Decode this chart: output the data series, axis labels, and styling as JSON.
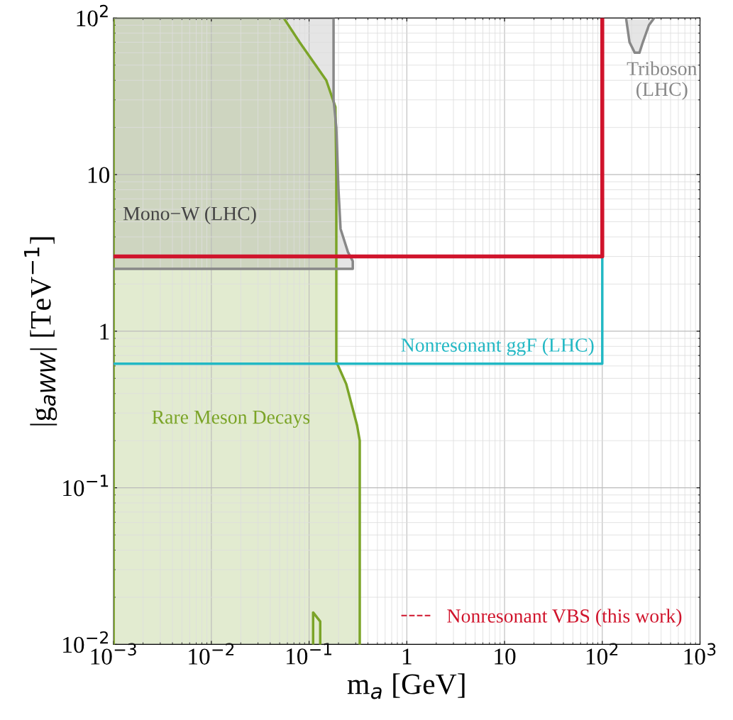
{
  "chart_data": {
    "type": "line",
    "xlabel": "m$_{a}$ [GeV]",
    "ylabel": "|g$_{aWW}$| [TeV$^{−1}$]",
    "log": "xy",
    "grid": true,
    "legend": "bottom right",
    "xlim": [
      0.001,
      1000
    ],
    "ylim": [
      0.01,
      100
    ],
    "xticks": [
      {
        "value": 0.001,
        "label": "10$^{−3}$"
      },
      {
        "value": 0.01,
        "label": "10$^{−2}$"
      },
      {
        "value": 0.1,
        "label": "10$^{−1}$"
      },
      1,
      10,
      {
        "value": 100,
        "label": "10$^{2}$"
      },
      {
        "value": 1000,
        "label": "10$^{3}$"
      }
    ],
    "yticks": [
      {
        "value": 0.01,
        "label": "10$^{−2}$"
      },
      {
        "value": 0.1,
        "label": "10$^{−1}$"
      },
      1,
      10,
      {
        "value": 100,
        "label": "10$^{2}$"
      }
    ],
    "series": [
      {
        "name": "Rare Meson Decays",
        "type": "area",
        "color": "#7ba428",
        "x": [
          0.001,
          0.001,
          0.055,
          0.08,
          0.15,
          0.186,
          0.19,
          0.19,
          0.24,
          0.31,
          0.33,
          0.33
        ],
        "values": [
          0.01,
          100,
          100,
          70,
          40,
          27,
          10,
          0.64,
          0.46,
          0.25,
          0.2,
          0.01
        ]
      },
      {
        "color": "#7ba428",
        "x": [
          0.11,
          0.11,
          0.13,
          0.13
        ],
        "values": [
          0.01,
          0.016,
          0.014,
          0.01
        ]
      },
      {
        "name": "Mono−W (LHC)",
        "type": "area",
        "color": "#888888",
        "x": [
          0.001,
          0.28,
          0.28,
          0.25,
          0.21,
          0.2,
          0.19,
          0.178,
          0.178,
          0.001
        ],
        "values": [
          2.5,
          2.5,
          2.8,
          3.2,
          4.5,
          8,
          20,
          30,
          100,
          100
        ]
      },
      {
        "name": "Triboson\n(LHC)",
        "type": "area",
        "color": "#888888",
        "x": [
          175,
          190,
          215,
          240,
          260,
          300,
          340
        ],
        "values": [
          100,
          70,
          60,
          60,
          70,
          90,
          100
        ]
      },
      {
        "name": "Nonresonant ggF (LHC)",
        "color": "#22b8c4",
        "x": [
          0.001,
          100,
          100
        ],
        "values": [
          0.62,
          0.62,
          3
        ]
      },
      {
        "name": "Nonresonant VBS (this work)",
        "color": "#d0142c",
        "x": [
          0.001,
          100,
          100
        ],
        "values": [
          3,
          3,
          100
        ]
      }
    ]
  }
}
